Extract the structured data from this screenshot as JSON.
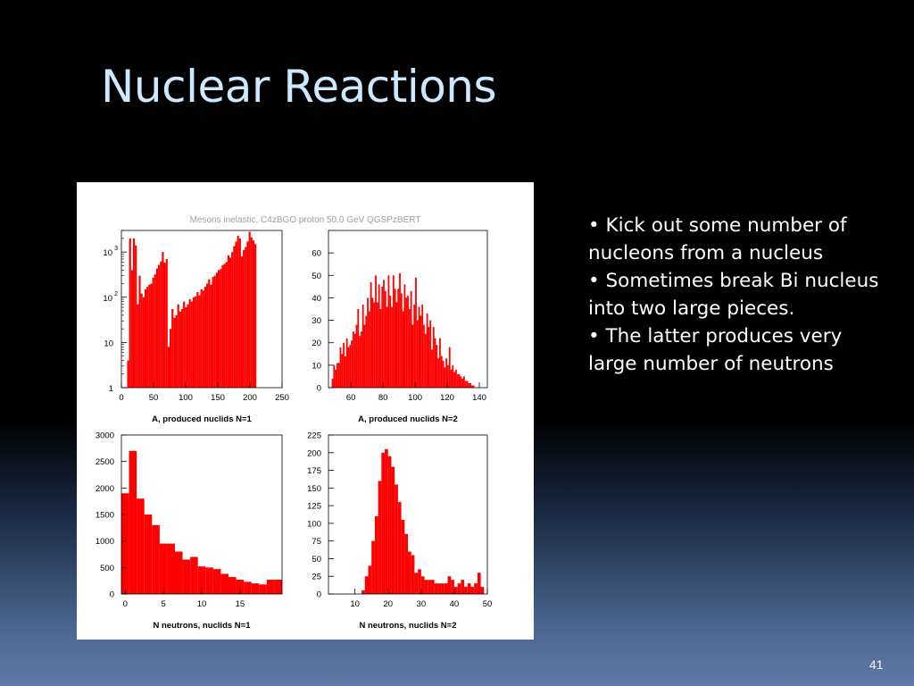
{
  "slide": {
    "title": "Nuclear Reactions",
    "page_number": "41",
    "bullets": [
      "• Kick out some number of nucleons from a nucleus",
      "• Sometimes break Bi nucleus into two large pieces.",
      "• The latter produces very large number of neutrons"
    ]
  },
  "figure": {
    "header": "Mesons inelastic,  C4zBGO proton 50.0 GeV QGSPzBERT",
    "bar_color": "#ff0000"
  },
  "chart_data": [
    {
      "type": "bar",
      "xlabel": "A, produced nuclids N=1",
      "log_y": true,
      "xlim": [
        0,
        250
      ],
      "ylim": [
        1,
        3000
      ],
      "x_ticks": [
        "0",
        "50",
        "100",
        "150",
        "200",
        "250"
      ],
      "y_tick_labels": [
        {
          "value": 1,
          "base": "1",
          "exp": ""
        },
        {
          "value": 10,
          "base": "10",
          "exp": ""
        },
        {
          "value": 100,
          "base": "10",
          "exp": "2"
        },
        {
          "value": 1000,
          "base": "10",
          "exp": "3"
        }
      ],
      "bin_start": 0,
      "bin_width": 3,
      "values": [
        0,
        0,
        0,
        4,
        2000,
        400,
        2000,
        1400,
        70,
        300,
        120,
        100,
        150,
        170,
        190,
        200,
        270,
        320,
        430,
        520,
        620,
        1000,
        580,
        700,
        8,
        20,
        55,
        35,
        40,
        70,
        48,
        55,
        80,
        60,
        70,
        90,
        80,
        100,
        105,
        130,
        110,
        150,
        140,
        170,
        200,
        250,
        190,
        280,
        300,
        350,
        400,
        420,
        510,
        550,
        600,
        850,
        750,
        1000,
        1350,
        1700,
        2300,
        2000,
        800,
        1100,
        1300,
        1700,
        2800,
        2100,
        1800,
        1500,
        0,
        0,
        0,
        0,
        0,
        0,
        0,
        0,
        0,
        0,
        0,
        0,
        0
      ]
    },
    {
      "type": "bar",
      "xlabel": "A, produced nuclids N=2",
      "xlim": [
        46,
        145
      ],
      "ylim": [
        0,
        70
      ],
      "x_ticks": [
        "60",
        "80",
        "100",
        "120",
        "140"
      ],
      "y_ticks": [
        "0",
        "10",
        "20",
        "30",
        "40",
        "50",
        "60"
      ],
      "bin_start": 46,
      "bin_width": 1,
      "values": [
        0,
        0,
        4,
        10,
        8,
        11,
        11,
        18,
        15,
        20,
        14,
        22,
        18,
        19,
        21,
        25,
        24,
        28,
        35,
        23,
        25,
        37,
        28,
        32,
        40,
        34,
        47,
        40,
        38,
        50,
        38,
        46,
        35,
        45,
        48,
        43,
        36,
        50,
        41,
        36,
        50,
        44,
        38,
        44,
        51,
        42,
        34,
        46,
        40,
        41,
        35,
        43,
        28,
        37,
        49,
        30,
        36,
        32,
        37,
        28,
        24,
        33,
        27,
        30,
        17,
        27,
        22,
        19,
        13,
        22,
        14,
        12,
        9,
        13,
        10,
        18,
        8,
        10,
        7,
        8,
        6,
        6,
        5,
        4,
        5,
        3,
        3,
        2,
        2,
        1,
        1,
        0,
        0,
        0,
        0,
        0,
        0,
        0,
        0
      ]
    },
    {
      "type": "bar",
      "xlabel": "N neutrons, nuclids N=1",
      "xlim": [
        -0.5,
        20.5
      ],
      "ylim": [
        0,
        3000
      ],
      "x_ticks": [
        "0",
        "5",
        "10",
        "15"
      ],
      "y_ticks": [
        "0",
        "500",
        "1000",
        "1500",
        "2000",
        "2500",
        "3000"
      ],
      "bin_start": -0.5,
      "bin_width": 1,
      "values": [
        1900,
        2700,
        1800,
        1500,
        1300,
        950,
        950,
        800,
        650,
        700,
        520,
        500,
        470,
        380,
        320,
        270,
        230,
        200,
        180,
        270,
        270
      ]
    },
    {
      "type": "bar",
      "xlabel": "N neutrons, nuclids N=2",
      "xlim": [
        2,
        50
      ],
      "ylim": [
        0,
        225
      ],
      "x_ticks": [
        "10",
        "20",
        "30",
        "40",
        "50"
      ],
      "y_ticks": [
        "0",
        "25",
        "50",
        "75",
        "100",
        "125",
        "150",
        "175",
        "200",
        "225"
      ],
      "bin_start": 2,
      "bin_width": 1,
      "values": [
        0,
        0,
        0,
        0,
        0,
        0,
        0,
        0,
        0,
        0,
        5,
        25,
        40,
        75,
        110,
        160,
        200,
        205,
        195,
        180,
        155,
        130,
        105,
        85,
        60,
        55,
        30,
        35,
        25,
        20,
        20,
        20,
        15,
        15,
        15,
        15,
        25,
        20,
        10,
        15,
        20,
        10,
        15,
        10,
        15,
        30,
        10,
        0
      ]
    }
  ]
}
